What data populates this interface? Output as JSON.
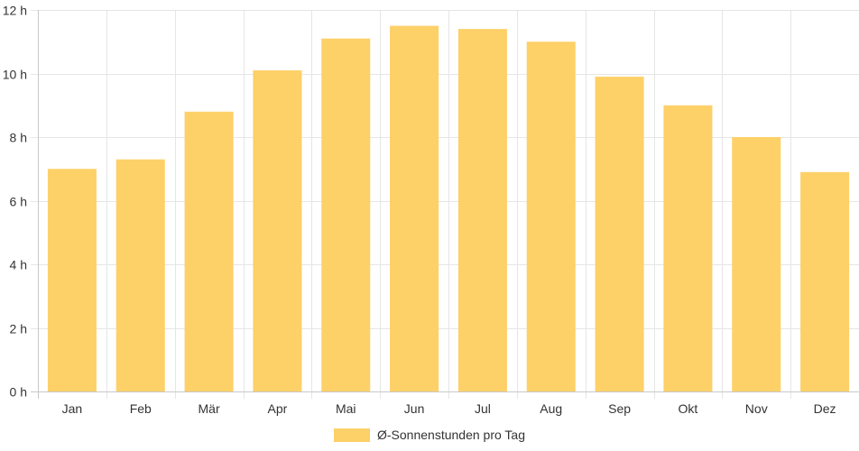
{
  "chart_data": {
    "type": "bar",
    "categories": [
      "Jan",
      "Feb",
      "Mär",
      "Apr",
      "Mai",
      "Jun",
      "Jul",
      "Aug",
      "Sep",
      "Okt",
      "Nov",
      "Dez"
    ],
    "series": [
      {
        "name": "Ø-Sonnenstunden pro Tag",
        "values": [
          7.0,
          7.3,
          8.8,
          10.1,
          11.1,
          11.5,
          11.4,
          11.0,
          9.9,
          9.0,
          8.0,
          6.9
        ],
        "color": "#fdd068"
      }
    ],
    "y_unit": "h",
    "y_ticks": [
      0,
      2,
      4,
      6,
      8,
      10,
      12
    ],
    "ylim": [
      0,
      12
    ],
    "grid": true,
    "legend_position": "bottom-center"
  }
}
